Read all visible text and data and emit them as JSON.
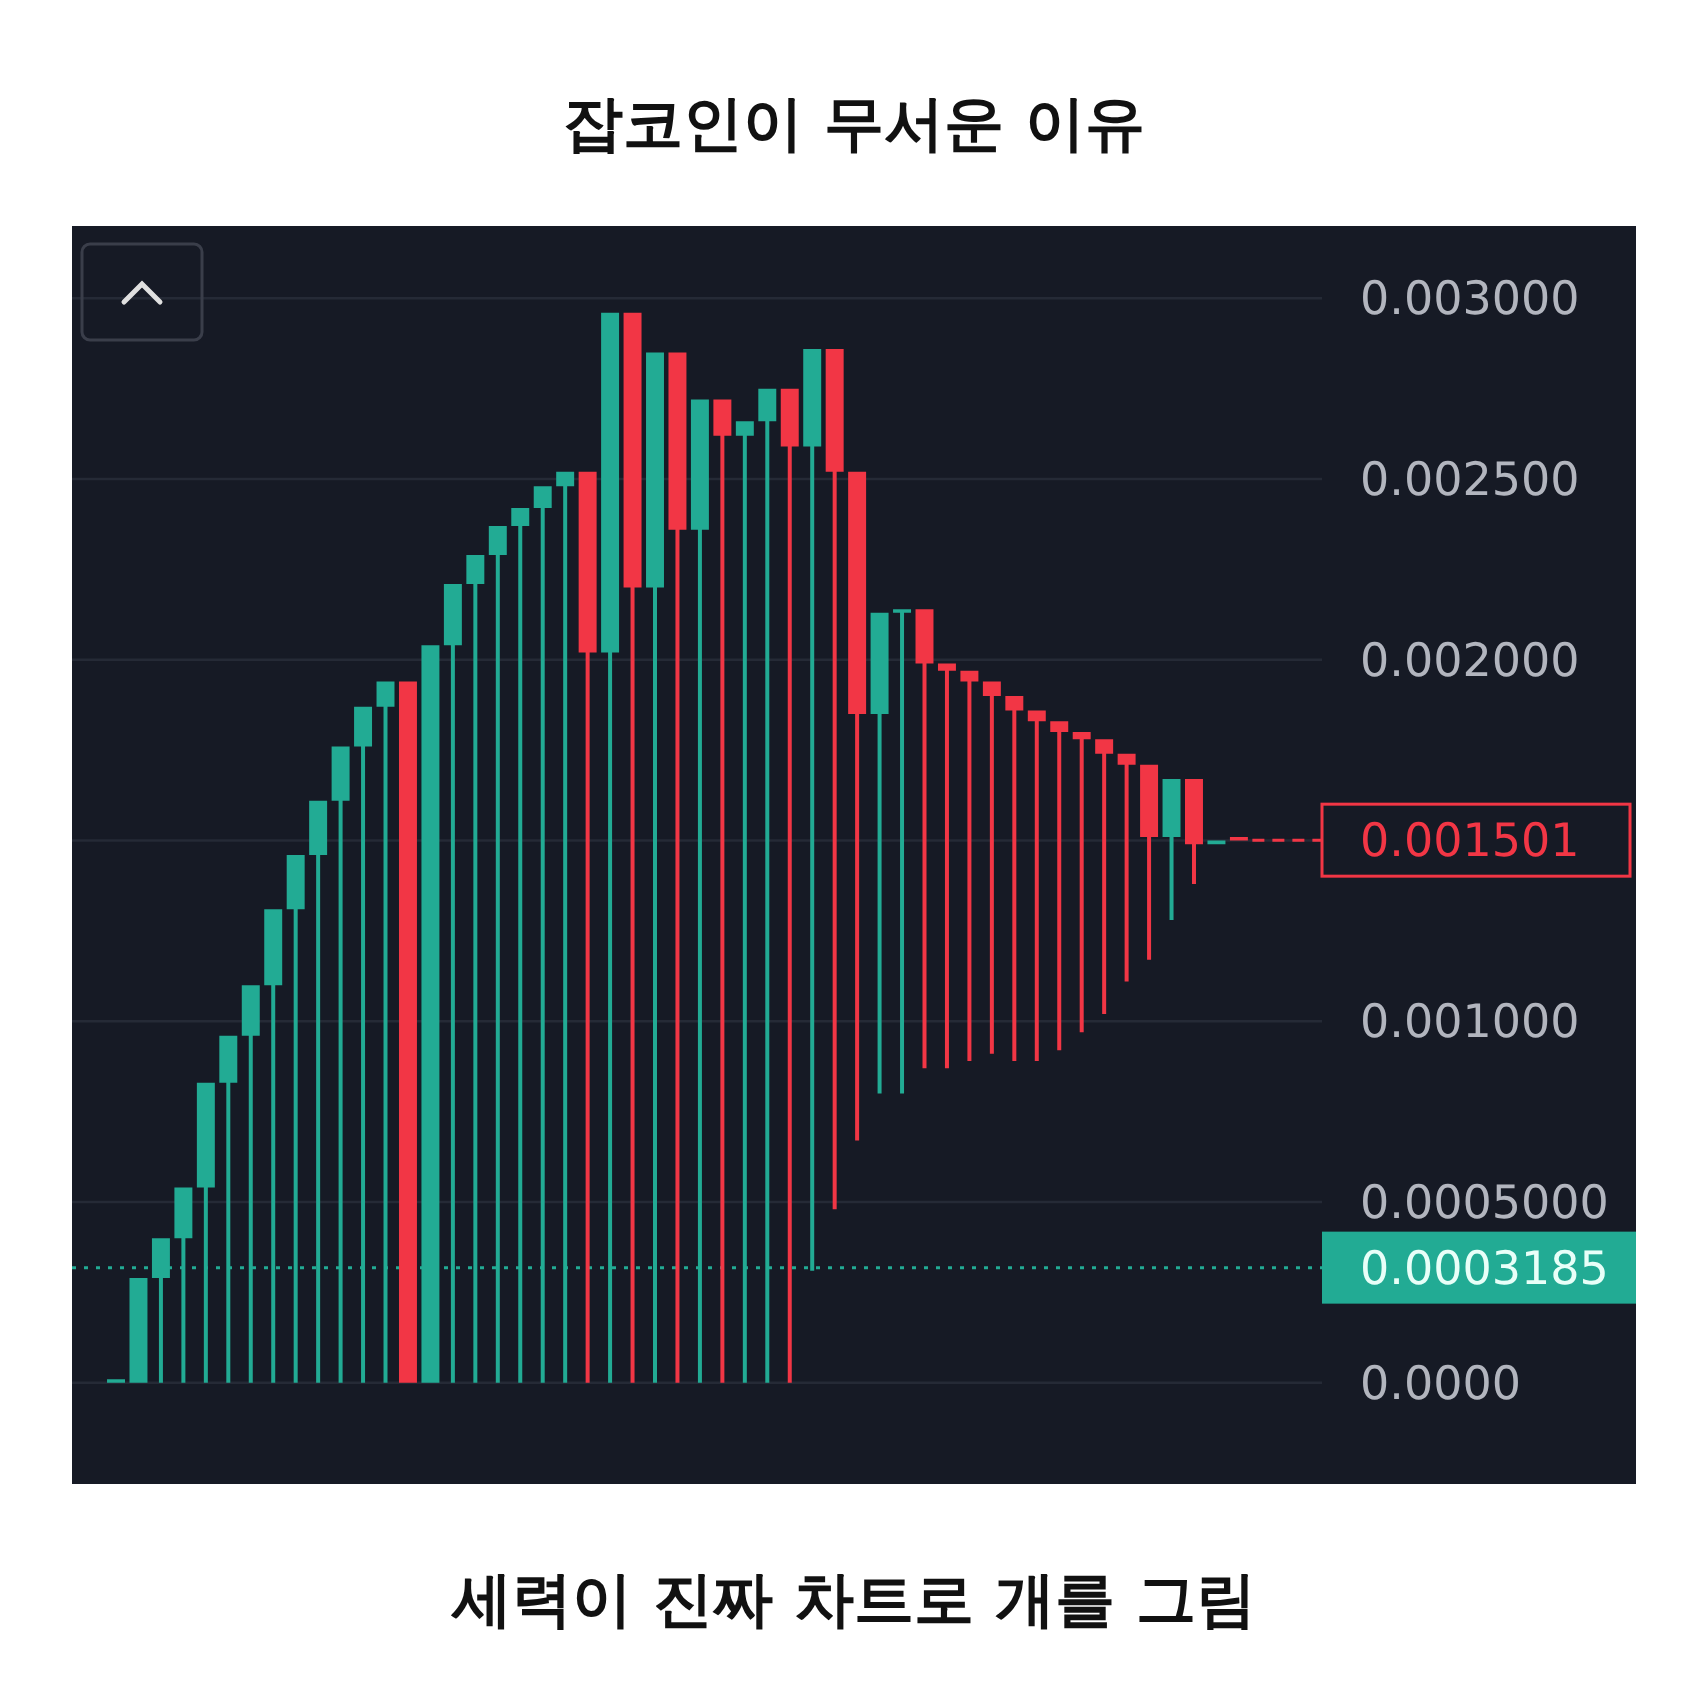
{
  "chart_data": {
    "type": "candlestick",
    "title": "잡코인이 무서운 이유",
    "annotations": [
      "세력이 진짜 차트로 개를 그림"
    ],
    "categories": [
      null,
      null,
      null,
      null,
      null,
      null,
      null,
      null,
      null,
      null,
      null,
      null,
      null,
      null,
      null,
      null,
      null,
      null,
      null,
      null,
      null,
      null,
      null,
      null,
      null,
      null,
      null,
      null,
      null,
      null,
      null,
      null,
      null,
      null,
      null,
      null,
      null,
      null,
      null,
      null,
      null,
      null,
      null,
      null,
      null,
      null,
      null,
      null,
      null,
      null,
      null
    ],
    "ohlc": [
      [
        0,
        1e-05,
        0,
        1e-05
      ],
      [
        0,
        0.00029,
        0,
        0.00029
      ],
      [
        0.00029,
        0.0004,
        0,
        0.0004
      ],
      [
        0.0004,
        0.00054,
        0,
        0.00054
      ],
      [
        0.00054,
        0.00083,
        0,
        0.00083
      ],
      [
        0.00083,
        0.00096,
        0,
        0.00096
      ],
      [
        0.00096,
        0.0011,
        0,
        0.0011
      ],
      [
        0.0011,
        0.00131,
        0,
        0.00131
      ],
      [
        0.00131,
        0.00146,
        0,
        0.00146
      ],
      [
        0.00146,
        0.00161,
        0,
        0.00161
      ],
      [
        0.00161,
        0.00176,
        0,
        0.00176
      ],
      [
        0.00176,
        0.00187,
        0,
        0.00187
      ],
      [
        0.00187,
        0.00194,
        0,
        0.00194
      ],
      [
        0.00194,
        0.00194,
        0,
        0
      ],
      [
        0,
        0.00204,
        0,
        0.00204
      ],
      [
        0.00204,
        0.00221,
        0,
        0.00221
      ],
      [
        0.00221,
        0.00229,
        0,
        0.00229
      ],
      [
        0.00229,
        0.00237,
        0,
        0.00237
      ],
      [
        0.00237,
        0.00242,
        0,
        0.00242
      ],
      [
        0.00242,
        0.00248,
        0,
        0.00248
      ],
      [
        0.00248,
        0.00252,
        0,
        0.00252
      ],
      [
        0.00252,
        0.00252,
        0,
        0.00202
      ],
      [
        0.00202,
        0.00296,
        0,
        0.00296
      ],
      [
        0.00296,
        0.00296,
        0,
        0.0022
      ],
      [
        0.0022,
        0.00285,
        0,
        0.00285
      ],
      [
        0.00285,
        0.00285,
        0,
        0.00236
      ],
      [
        0.00236,
        0.00272,
        0,
        0.00272
      ],
      [
        0.00272,
        0.00272,
        0,
        0.00262
      ],
      [
        0.00262,
        0.00266,
        0,
        0.00266
      ],
      [
        0.00266,
        0.00275,
        0,
        0.00275
      ],
      [
        0.00275,
        0.00275,
        0,
        0.00259
      ],
      [
        0.00259,
        0.00286,
        0.00031,
        0.00286
      ],
      [
        0.00286,
        0.00286,
        0.00048,
        0.00252
      ],
      [
        0.00252,
        0.00252,
        0.00067,
        0.00185
      ],
      [
        0.00185,
        0.00213,
        0.0008,
        0.00213
      ],
      [
        0.00213,
        0.00214,
        0.0008,
        0.00214
      ],
      [
        0.00214,
        0.00214,
        0.00087,
        0.00199
      ],
      [
        0.00199,
        0.00199,
        0.00087,
        0.00197
      ],
      [
        0.00197,
        0.00197,
        0.00089,
        0.00194
      ],
      [
        0.00194,
        0.00194,
        0.00091,
        0.0019
      ],
      [
        0.0019,
        0.0019,
        0.00089,
        0.00186
      ],
      [
        0.00186,
        0.00186,
        0.00089,
        0.00183
      ],
      [
        0.00183,
        0.00183,
        0.00092,
        0.0018
      ],
      [
        0.0018,
        0.0018,
        0.00097,
        0.00178
      ],
      [
        0.00178,
        0.00178,
        0.00102,
        0.00174
      ],
      [
        0.00174,
        0.00174,
        0.00111,
        0.00171
      ],
      [
        0.00171,
        0.00171,
        0.00117,
        0.00151
      ],
      [
        0.00151,
        0.00167,
        0.00128,
        0.00167
      ],
      [
        0.00167,
        0.00167,
        0.00138,
        0.00149
      ],
      [
        0.00149,
        0.0015,
        0.00149,
        0.0015
      ],
      [
        0.00151,
        0.00151,
        0.0015,
        0.0015
      ]
    ],
    "colors": [
      "#22ab94",
      "#22ab94",
      "#22ab94",
      "#22ab94",
      "#22ab94",
      "#22ab94",
      "#22ab94",
      "#22ab94",
      "#22ab94",
      "#22ab94",
      "#22ab94",
      "#22ab94",
      "#22ab94",
      "#f23645",
      "#22ab94",
      "#22ab94",
      "#22ab94",
      "#22ab94",
      "#22ab94",
      "#22ab94",
      "#22ab94",
      "#f23645",
      "#22ab94",
      "#f23645",
      "#22ab94",
      "#f23645",
      "#22ab94",
      "#f23645",
      "#22ab94",
      "#22ab94",
      "#f23645",
      "#22ab94",
      "#f23645",
      "#f23645",
      "#22ab94",
      "#22ab94",
      "#f23645",
      "#f23645",
      "#f23645",
      "#f23645",
      "#f23645",
      "#f23645",
      "#f23645",
      "#f23645",
      "#f23645",
      "#f23645",
      "#f23645",
      "#22ab94",
      "#f23645",
      "#22ab94",
      "#f23645"
    ],
    "ylim": [
      -0.00028,
      0.0032
    ],
    "yticks": [
      {
        "value": 0,
        "label": "0.0000"
      },
      {
        "value": 0.0005,
        "label": "0.0005000"
      },
      {
        "value": 0.001,
        "label": "0.001000"
      },
      {
        "value": 0.0015,
        "label": null
      },
      {
        "value": 0.002,
        "label": "0.002000"
      },
      {
        "value": 0.0025,
        "label": "0.002500"
      },
      {
        "value": 0.003,
        "label": "0.003000"
      }
    ],
    "grid": "y",
    "tick_labels": "y",
    "ref_lines": [
      {
        "axis": "y",
        "value": 0.0003185,
        "label": "0.0003185",
        "color": "#22ab94",
        "line_style": "dotted"
      },
      {
        "axis": "y",
        "value": 0.001501,
        "label": "0.001501",
        "color": "#f23645",
        "line_style": "dashed"
      }
    ]
  }
}
